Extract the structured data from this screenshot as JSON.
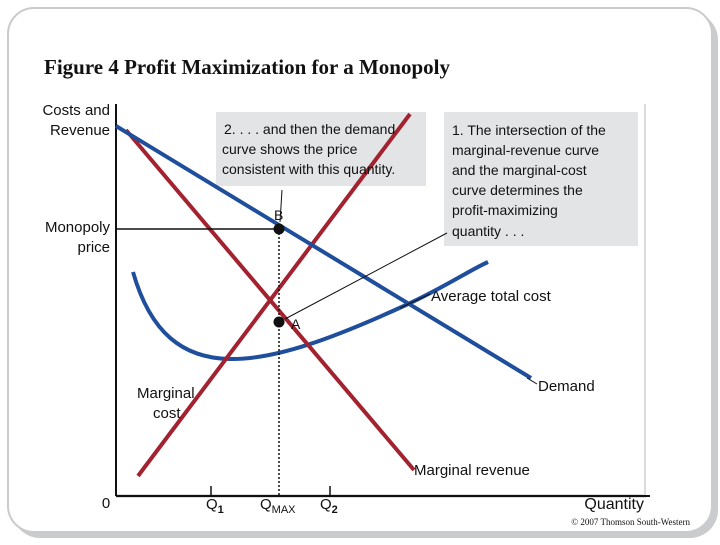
{
  "title": "Figure 4 Profit Maximization for a Monopoly",
  "copyright": "© 2007 Thomson South-Western",
  "colors": {
    "demand": "#1f4e9c",
    "marginal_revenue": "#a3222f",
    "marginal_cost": "#a3222f",
    "average_total_cost": "#1f4e9c",
    "panel_bg": "#d9dbdd",
    "callout_bg": "#e2e4e6",
    "frame_shadow": "#c9cbcd"
  },
  "axes": {
    "y_label_line1": "Costs and",
    "y_label_line2": "Revenue",
    "x_label": "Quantity",
    "origin_label": "0",
    "monopoly_price_line1": "Monopoly",
    "monopoly_price_line2": "price"
  },
  "ticks": {
    "q1_main": "Q",
    "q1_sub": "1",
    "qmax_main": "Q",
    "qmax_sub": "MAX",
    "q2_main": "Q",
    "q2_sub": "2"
  },
  "points": {
    "b_label": "B",
    "a_label": "A"
  },
  "curve_labels": {
    "average_total_cost": "Average total cost",
    "demand": "Demand",
    "marginal_cost_line1": "Marginal",
    "marginal_cost_line2": "cost",
    "marginal_revenue": "Marginal revenue"
  },
  "callouts": {
    "demand_callout": [
      "2. . . . and then the demand",
      "curve shows the price",
      "consistent with this quantity."
    ],
    "intersection_callout": [
      "1. The intersection of the",
      "marginal-revenue curve",
      "and the marginal-cost",
      "curve determines the",
      "profit-maximizing",
      "quantity . . ."
    ]
  },
  "chart_data": {
    "type": "line",
    "title": "Figure 4 Profit Maximization for a Monopoly",
    "xlabel": "Quantity",
    "ylabel": "Costs and Revenue",
    "x_ticks": [
      "Q1",
      "QMAX",
      "Q2"
    ],
    "y_ticks": [
      "Monopoly price"
    ],
    "grid": false,
    "series": [
      {
        "name": "Demand"
      },
      {
        "name": "Marginal revenue"
      },
      {
        "name": "Marginal cost"
      },
      {
        "name": "Average total cost"
      }
    ],
    "annotations": [
      "B",
      "A"
    ]
  }
}
